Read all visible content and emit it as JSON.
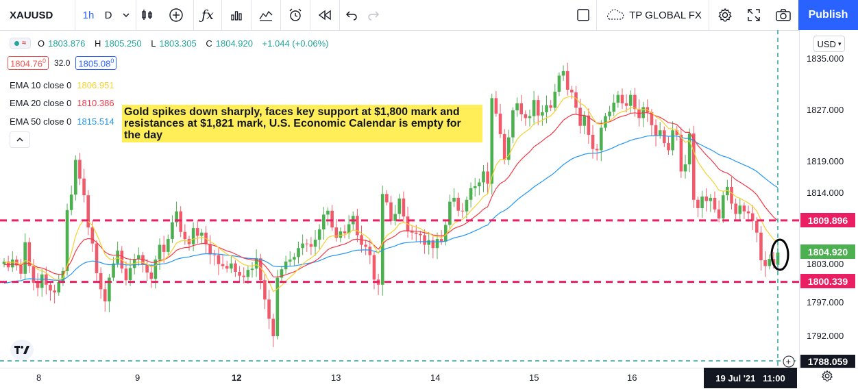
{
  "toolbar": {
    "symbol": "XAUUSD",
    "interval_1h": "1h",
    "interval_D": "D",
    "broker": "TP GLOBAL FX",
    "publish": "Publish"
  },
  "legend": {
    "ohlc": {
      "open_label": "O",
      "open": "1803.876",
      "high_label": "H",
      "high": "1805.250",
      "low_label": "L",
      "low": "1803.305",
      "close_label": "C",
      "close": "1804.920",
      "change": "+1.044 (+0.06%)"
    },
    "bid": "1804.76",
    "bid_sup": "0",
    "spread": "32.0",
    "ask": "1805.08",
    "ask_sup": "0",
    "ema": [
      {
        "label": "EMA 10 close 0",
        "value": "1806.951",
        "color": "#f5d12f"
      },
      {
        "label": "EMA 20 close 0",
        "value": "1810.386",
        "color": "#f23645"
      },
      {
        "label": "EMA 50 close 0",
        "value": "1815.514",
        "color": "#2196f3"
      }
    ]
  },
  "annotation": "Gold spikes down sharply, faces key support at $1,800 mark and resistances at $1,821 mark, U.S. Economic Calendar is empty for the day",
  "price_axis": {
    "currency": "USD",
    "labels": [
      "1835.000",
      "1827.000",
      "1819.000",
      "1814.000",
      "1809.896",
      "1804.920",
      "1803.000",
      "1800.339",
      "1797.000",
      "1792.000",
      "1788.059"
    ],
    "resistance_tag": "1809.896",
    "last_price_tag": "1804.920",
    "support_tag": "1800.339",
    "crosshair_tag": "1788.059"
  },
  "time_axis": {
    "labels": [
      "8",
      "9",
      "12",
      "13",
      "14",
      "15",
      "16"
    ],
    "crosshair_time": "19 Jul '21   11:00"
  },
  "colors": {
    "up": "#26a69a",
    "down": "#ef5350",
    "candle_up": "#4caf50",
    "candle_down": "#f05a6a",
    "level_line": "#e91e63",
    "crosshair": "#26a69a",
    "accent": "#2962ff"
  },
  "chart_data": {
    "type": "candlestick",
    "symbol": "XAUUSD",
    "interval": "1h",
    "ylim": [
      1788.059,
      1837.0
    ],
    "levels": [
      1809.896,
      1800.339
    ],
    "last_close": 1804.92,
    "candles_close_path": [
      1803.5,
      1802.6,
      1803.8,
      1802.9,
      1801.6,
      1806.5,
      1802.8,
      1800.2,
      1799.4,
      1801.5,
      1799.9,
      1799.0,
      1798.7,
      1800.3,
      1802.0,
      1811.5,
      1813.9,
      1819.3,
      1816.4,
      1813.8,
      1808.8,
      1806.3,
      1801.7,
      1799.2,
      1797.3,
      1801.0,
      1803.2,
      1805.2,
      1802.4,
      1800.6,
      1802.5,
      1803.9,
      1804.5,
      1803.0,
      1801.8,
      1800.8,
      1803.8,
      1806.1,
      1805.0,
      1807.0,
      1809.6,
      1811.3,
      1808.1,
      1807.0,
      1806.2,
      1808.7,
      1807.5,
      1808.0,
      1806.2,
      1804.6,
      1804.5,
      1803.1,
      1802.8,
      1802.4,
      1803.2,
      1801.9,
      1801.3,
      1801.1,
      1802.2,
      1802.4,
      1804.0,
      1800.6,
      1797.6,
      1794.6,
      1791.9,
      1801.0,
      1802.3,
      1803.5,
      1803.8,
      1804.2,
      1805.6,
      1806.3,
      1806.2,
      1805.8,
      1806.9,
      1808.5,
      1810.8,
      1811.4,
      1808.8,
      1807.2,
      1808.2,
      1807.9,
      1809.3,
      1810.6,
      1807.6,
      1806.1,
      1805.8,
      1804.5,
      1800.7,
      1799.9,
      1814.0,
      1812.7,
      1809.8,
      1810.9,
      1813.3,
      1810.5,
      1808.2,
      1808.0,
      1807.8,
      1807.6,
      1806.1,
      1806.8,
      1805.6,
      1807.0,
      1806.6,
      1809.2,
      1812.8,
      1813.4,
      1811.4,
      1811.3,
      1813.1,
      1814.9,
      1815.2,
      1815.8,
      1817.5,
      1815.6,
      1828.9,
      1826.5,
      1823.3,
      1819.3,
      1822.8,
      1827.0,
      1828.1,
      1826.4,
      1825.8,
      1826.1,
      1828.6,
      1826.2,
      1826.7,
      1827.8,
      1827.4,
      1829.9,
      1832.4,
      1833.1,
      1830.2,
      1829.8,
      1827.4,
      1824.6,
      1826.2,
      1823.2,
      1821.0,
      1820.8,
      1824.3,
      1826.1,
      1826.8,
      1828.2,
      1829.4,
      1828.1,
      1827.7,
      1829.4,
      1827.2,
      1825.8,
      1827.5,
      1826.7,
      1824.7,
      1823.1,
      1823.9,
      1821.9,
      1820.8,
      1823.9,
      1823.2,
      1817.5,
      1818.6,
      1823.4,
      1813.1,
      1811.8,
      1813.6,
      1812.9,
      1813.4,
      1811.6,
      1810.2,
      1813.8,
      1815.1,
      1812.5,
      1810.9,
      1812.2,
      1811.3,
      1811.0,
      1809.8,
      1808.0,
      1803.7,
      1802.8,
      1803.9,
      1803.0,
      1804.9
    ]
  }
}
